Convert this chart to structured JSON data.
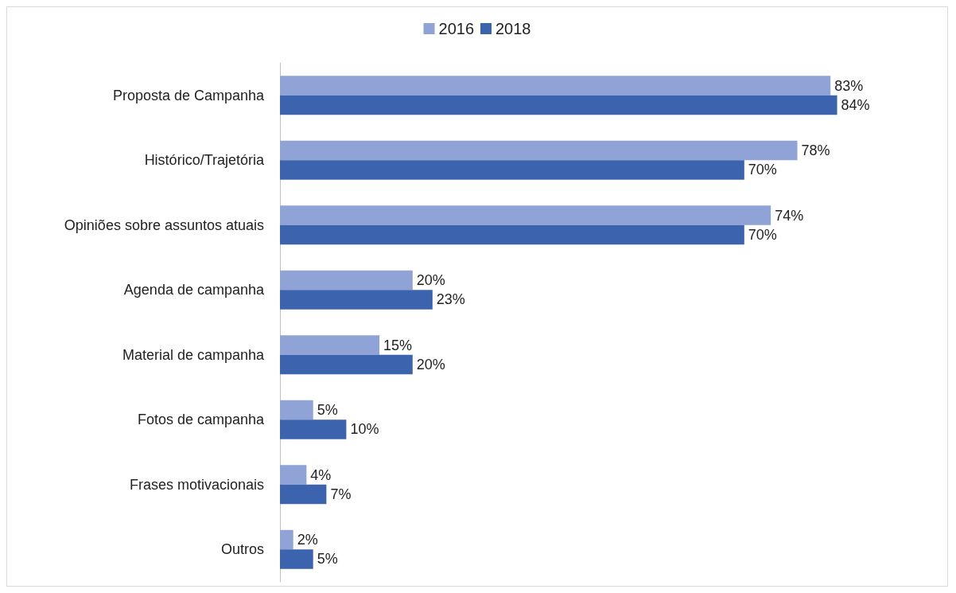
{
  "chart_data": {
    "type": "bar",
    "orientation": "horizontal",
    "categories": [
      "Proposta de Campanha",
      "Histórico/Trajetória",
      "Opiniões sobre assuntos atuais",
      "Agenda de campanha",
      "Material de campanha",
      "Fotos de campanha",
      "Frases motivacionais",
      "Outros"
    ],
    "series": [
      {
        "name": "2016",
        "color": "#8fa3d6",
        "values": [
          83,
          78,
          74,
          20,
          15,
          5,
          4,
          2
        ],
        "value_labels": [
          "83%",
          "78%",
          "74%",
          "20%",
          "15%",
          "5%",
          "4%",
          "2%"
        ]
      },
      {
        "name": "2018",
        "color": "#3c64ae",
        "values": [
          84,
          70,
          70,
          23,
          20,
          10,
          7,
          5
        ],
        "value_labels": [
          "84%",
          "70%",
          "70%",
          "23%",
          "20%",
          "10%",
          "7%",
          "5%"
        ]
      }
    ],
    "grid": false,
    "legend": "top"
  }
}
